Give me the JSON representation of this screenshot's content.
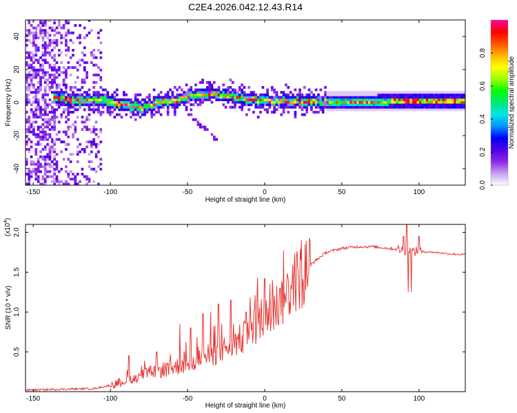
{
  "title": "C2E4.2026.042.12.43.R14",
  "chart_data": [
    {
      "type": "heatmap",
      "name": "spectrogram",
      "xlabel": "Height of straight line (km)",
      "ylabel": "Frequency (Hz)",
      "xlim": [
        -155,
        130
      ],
      "ylim": [
        -50,
        50
      ],
      "xticks": [
        -150,
        -100,
        -50,
        0,
        50,
        100
      ],
      "yticks": [
        -40,
        -20,
        0,
        20,
        40
      ],
      "grid": false,
      "colorbar": {
        "label": "Normalized spectral amplitude",
        "range": [
          0,
          1
        ],
        "ticks": [
          "0.0",
          "0.2",
          "0.4",
          "0.6",
          "0.8"
        ],
        "colors": [
          "#ffffff",
          "#c8a0f0",
          "#8c28e6",
          "#5000e6",
          "#0000ff",
          "#0096ff",
          "#00e6e6",
          "#00e678",
          "#00ff00",
          "#a0ff00",
          "#ffff00",
          "#ffb400",
          "#ff5000",
          "#ff0000",
          "#ff00a0"
        ]
      },
      "ridge": {
        "x": [
          -150,
          -135,
          -130,
          -120,
          -110,
          -100,
          -90,
          -80,
          -70,
          -60,
          -50,
          -40,
          -30,
          -20,
          -10,
          0,
          10,
          20,
          30,
          50,
          70,
          90,
          110,
          130
        ],
        "y": [
          2,
          3,
          2,
          1,
          2,
          0,
          -2,
          -3,
          0,
          1,
          3,
          5,
          5,
          3,
          2,
          1,
          1,
          0.5,
          0.5,
          0.5,
          0.5,
          1,
          1,
          1
        ]
      },
      "diffuse_band_x": [
        -155,
        -107
      ],
      "faint_branch": {
        "x": [
          -50,
          -32
        ],
        "y": [
          -8,
          -23
        ]
      }
    },
    {
      "type": "line",
      "name": "snr",
      "xlabel": "Height of straight line (km)",
      "ylabel": "SNR (10 * v/v)",
      "multiplier_label": "(x10",
      "multiplier_exp": "4",
      "xlim": [
        -155,
        130
      ],
      "ylim": [
        0,
        2.1
      ],
      "xticks": [
        -150,
        -100,
        -50,
        0,
        50,
        100
      ],
      "yticks": [
        "0.5",
        "1.0",
        "1.5",
        "2.0"
      ],
      "color": "#e53935",
      "grid": false,
      "trend": {
        "x": [
          -155,
          -110,
          -100,
          -90,
          -80,
          -70,
          -60,
          -50,
          -40,
          -30,
          -20,
          -10,
          0,
          10,
          20,
          30,
          40,
          50,
          60,
          70,
          80,
          90,
          95,
          100,
          110,
          120,
          130
        ],
        "y": [
          0.02,
          0.04,
          0.08,
          0.14,
          0.2,
          0.26,
          0.3,
          0.35,
          0.42,
          0.5,
          0.6,
          0.72,
          0.9,
          1.12,
          1.38,
          1.6,
          1.75,
          1.8,
          1.82,
          1.82,
          1.8,
          1.78,
          1.76,
          1.76,
          1.75,
          1.73,
          1.72
        ]
      },
      "peaks": {
        "x": [
          -88,
          -70,
          -55,
          -48,
          -40,
          -35,
          -30,
          -22,
          -12,
          -5,
          0,
          5,
          10,
          90,
          92,
          95,
          100
        ],
        "y": [
          0.45,
          0.5,
          0.85,
          0.8,
          0.98,
          1.0,
          1.1,
          1.15,
          1.0,
          1.2,
          1.42,
          1.4,
          1.3,
          1.95,
          2.1,
          1.25,
          1.95
        ]
      }
    }
  ]
}
